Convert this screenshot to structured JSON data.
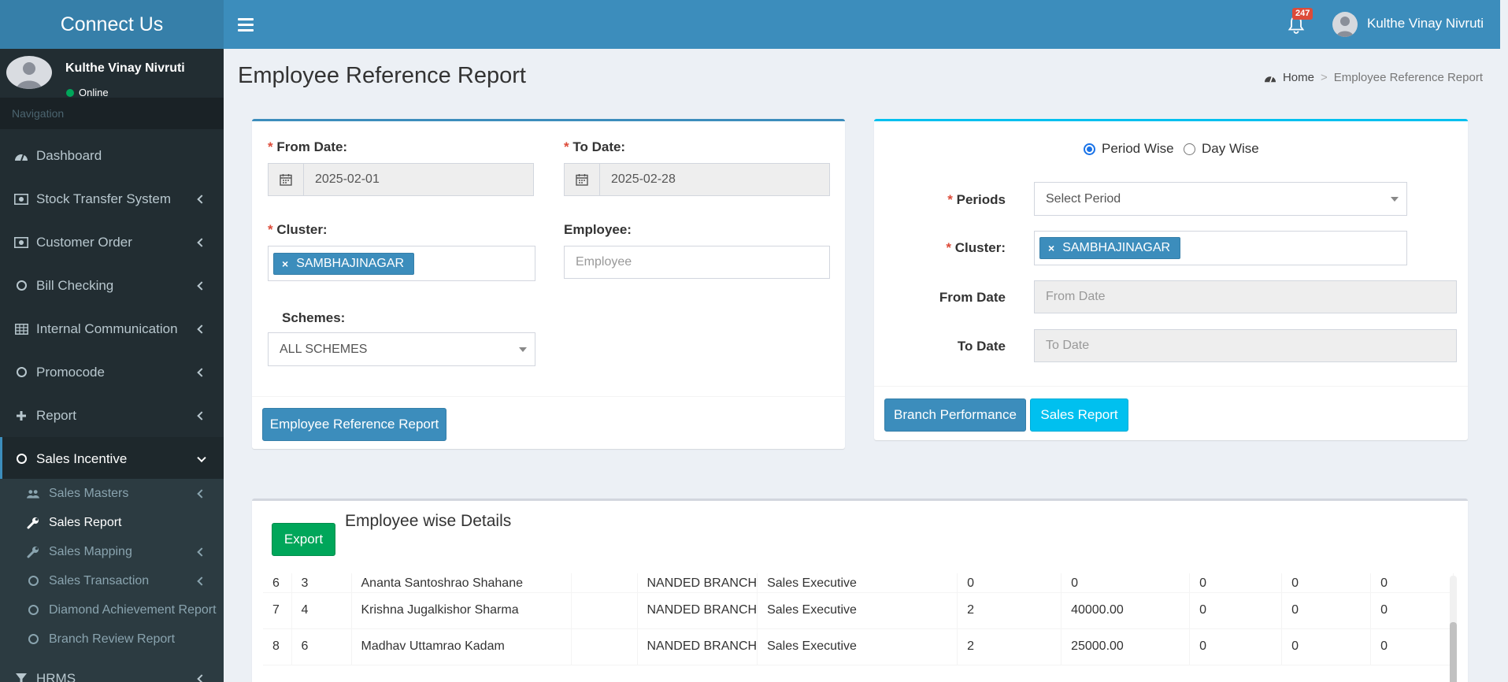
{
  "app": {
    "logo": "Connect Us"
  },
  "header": {
    "notification_count": "247",
    "user_name": "Kulthe Vinay Nivruti"
  },
  "sidebar": {
    "user": {
      "name": "Kulthe Vinay Nivruti",
      "status": "Online"
    },
    "nav_header": "Navigation",
    "items": [
      {
        "label": "Dashboard",
        "icon": "dashboard-icon"
      },
      {
        "label": "Stock Transfer System",
        "icon": "money-icon"
      },
      {
        "label": "Customer Order",
        "icon": "money-icon"
      },
      {
        "label": "Bill Checking",
        "icon": "circle-icon"
      },
      {
        "label": "Internal Communication",
        "icon": "table-icon"
      },
      {
        "label": "Promocode",
        "icon": "circle-icon"
      },
      {
        "label": "Report",
        "icon": "plus-icon"
      },
      {
        "label": "Sales Incentive",
        "icon": "circle-icon"
      },
      {
        "label": "HRMS",
        "icon": "filter-icon"
      }
    ],
    "sub_items": [
      {
        "label": "Sales Masters",
        "icon": "users-icon"
      },
      {
        "label": "Sales Report",
        "icon": "wrench-icon"
      },
      {
        "label": "Sales Mapping",
        "icon": "wrench-icon"
      },
      {
        "label": "Sales Transaction",
        "icon": "circle-icon"
      },
      {
        "label": "Diamond Achievement Report",
        "icon": "circle-icon"
      },
      {
        "label": "Branch Review Report",
        "icon": "circle-icon"
      }
    ]
  },
  "page": {
    "title": "Employee Reference Report",
    "breadcrumb": {
      "home": "Home",
      "current": "Employee Reference Report"
    }
  },
  "form_left": {
    "required_mark": "*",
    "from_date_label": "From Date:",
    "from_date_value": "2025-02-01",
    "to_date_label": "To Date:",
    "to_date_value": "2025-02-28",
    "cluster_label": "Cluster:",
    "cluster_tag": "SAMBHAJINAGAR",
    "employee_label": "Employee:",
    "employee_placeholder": "Employee",
    "schemes_label": "Schemes:",
    "schemes_value": "ALL SCHEMES",
    "submit_label": "Employee Reference Report"
  },
  "form_right": {
    "radio_period": "Period Wise",
    "radio_day": "Day Wise",
    "periods_label": "Periods",
    "periods_value": "Select Period",
    "cluster_label": "Cluster:",
    "cluster_tag": "SAMBHAJINAGAR",
    "from_date_label": "From Date",
    "from_date_placeholder": "From Date",
    "to_date_label": "To Date",
    "to_date_placeholder": "To Date",
    "branch_btn": "Branch Performance",
    "sales_btn": "Sales Report"
  },
  "details": {
    "title": "Employee wise Details",
    "export_label": "Export",
    "rows": [
      [
        "6",
        "3",
        "Ananta Santoshrao Shahane",
        "",
        "NANDED BRANCH",
        "Sales Executive",
        "0",
        "0",
        "0",
        "0",
        "0"
      ],
      [
        "7",
        "4",
        "Krishna Jugalkishor Sharma",
        "",
        "NANDED BRANCH",
        "Sales Executive",
        "2",
        "40000.00",
        "0",
        "0",
        "0"
      ],
      [
        "8",
        "6",
        "Madhav Uttamrao Kadam",
        "",
        "NANDED BRANCH",
        "Sales Executive",
        "2",
        "25000.00",
        "0",
        "0",
        "0"
      ]
    ]
  }
}
